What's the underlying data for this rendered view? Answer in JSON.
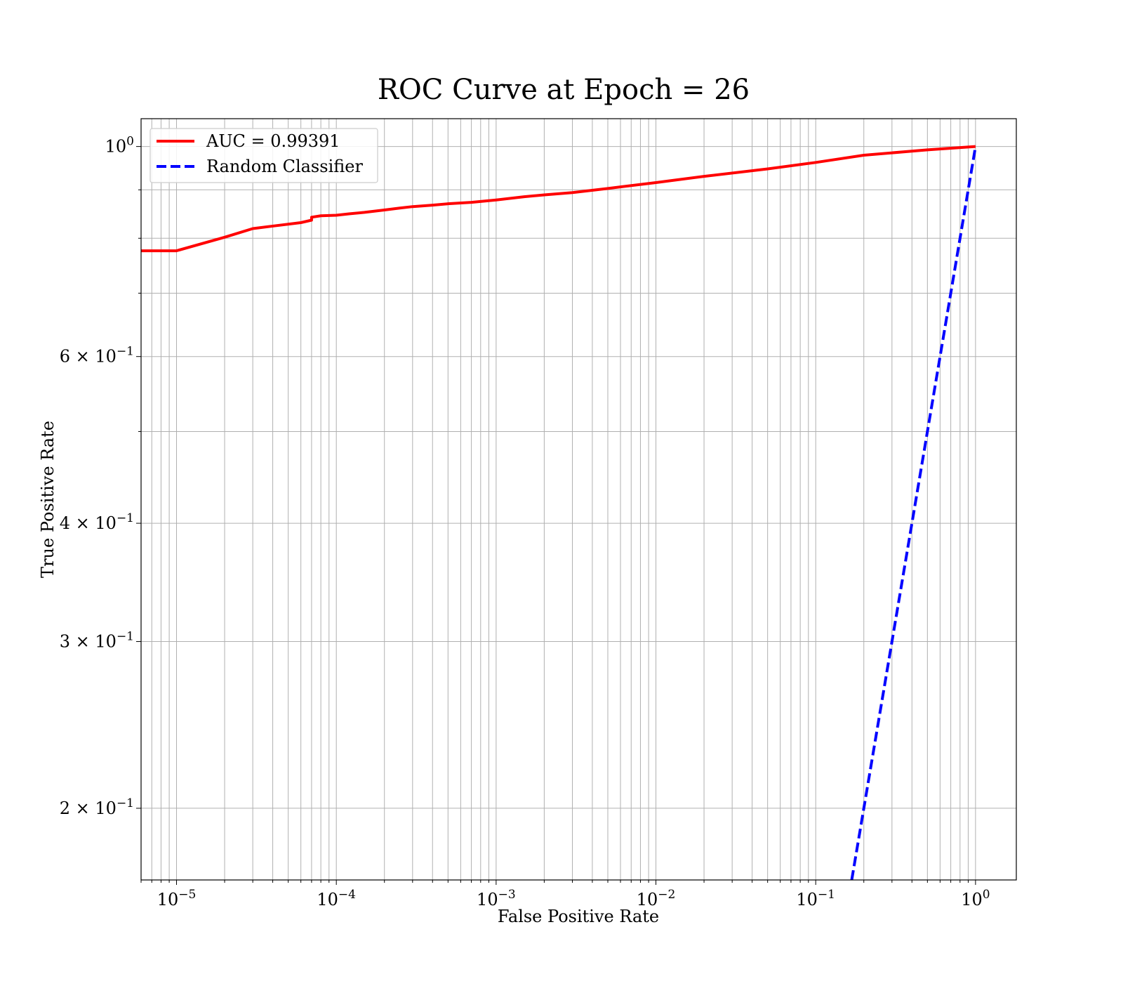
{
  "chart_data": {
    "type": "line",
    "title": "ROC Curve at Epoch = 26",
    "xlabel": "False Positive Rate",
    "ylabel": "True Positive Rate",
    "xscale": "log",
    "yscale": "log",
    "xlim": [
      6e-06,
      1.8
    ],
    "ylim": [
      0.168,
      1.07
    ],
    "grid": true,
    "legend_position": "top-left",
    "x_ticks": [
      {
        "value": 1e-05,
        "base": "10",
        "exp": "−5"
      },
      {
        "value": 0.0001,
        "base": "10",
        "exp": "−4"
      },
      {
        "value": 0.001,
        "base": "10",
        "exp": "−3"
      },
      {
        "value": 0.01,
        "base": "10",
        "exp": "−2"
      },
      {
        "value": 0.1,
        "base": "10",
        "exp": "−1"
      },
      {
        "value": 1,
        "base": "10",
        "exp": "0"
      }
    ],
    "y_ticks": [
      {
        "value": 1.0,
        "base": "10",
        "exp": "0"
      },
      {
        "value": 0.6,
        "base": "6 × 10",
        "exp": "−1"
      },
      {
        "value": 0.4,
        "base": "4 × 10",
        "exp": "−1"
      },
      {
        "value": 0.3,
        "base": "3 × 10",
        "exp": "−1"
      },
      {
        "value": 0.2,
        "base": "2 × 10",
        "exp": "−1"
      }
    ],
    "y_minor_grid": [
      0.9,
      0.8,
      0.7,
      0.5
    ],
    "series": [
      {
        "name": "AUC = 0.99391",
        "color": "#ff0000",
        "style": "solid",
        "x": [
          6e-06,
          1e-05,
          2e-05,
          3e-05,
          4e-05,
          6e-05,
          7e-05,
          7e-05,
          8e-05,
          0.0001,
          0.00012,
          0.00015,
          0.0002,
          0.00025,
          0.0003,
          0.0004,
          0.0005,
          0.0007,
          0.001,
          0.0015,
          0.002,
          0.003,
          0.005,
          0.01,
          0.02,
          0.05,
          0.1,
          0.2,
          0.5,
          1.0
        ],
        "y": [
          0.776,
          0.776,
          0.802,
          0.819,
          0.824,
          0.831,
          0.836,
          0.842,
          0.845,
          0.846,
          0.849,
          0.852,
          0.857,
          0.861,
          0.864,
          0.867,
          0.87,
          0.873,
          0.878,
          0.885,
          0.889,
          0.894,
          0.903,
          0.916,
          0.93,
          0.947,
          0.962,
          0.979,
          0.992,
          1.0
        ]
      },
      {
        "name": "Random Classifier",
        "color": "#0000ff",
        "style": "dashed",
        "x": [
          0.168,
          1.0
        ],
        "y": [
          0.168,
          1.0
        ]
      }
    ]
  }
}
